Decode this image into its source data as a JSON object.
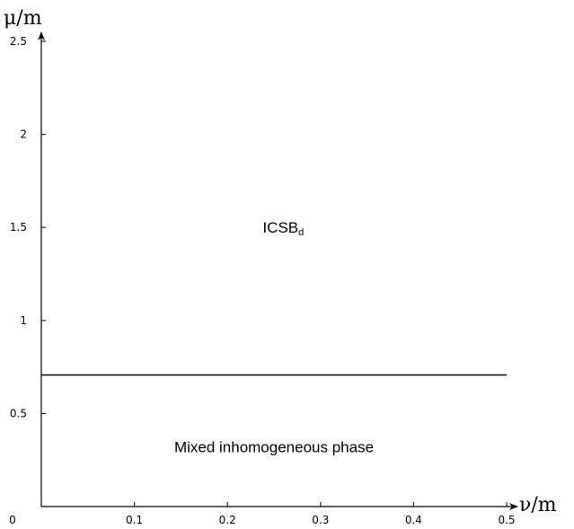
{
  "chart_data": {
    "type": "line",
    "title": "",
    "xlabel": "ν/m",
    "ylabel": "μ/m",
    "xlim": [
      0,
      0.5
    ],
    "ylim": [
      0,
      2.5
    ],
    "x_ticks": [
      {
        "value": 0,
        "label": "0"
      },
      {
        "value": 0.1,
        "label": "0.1"
      },
      {
        "value": 0.2,
        "label": "0.2"
      },
      {
        "value": 0.3,
        "label": "0.3"
      },
      {
        "value": 0.4,
        "label": "0.4"
      },
      {
        "value": 0.5,
        "label": "0.5"
      }
    ],
    "y_ticks": [
      {
        "value": 0.5,
        "label": "0.5"
      },
      {
        "value": 1,
        "label": "1"
      },
      {
        "value": 1.5,
        "label": "1.5"
      },
      {
        "value": 2,
        "label": "2"
      },
      {
        "value": 2.5,
        "label": "2.5"
      }
    ],
    "grid": false,
    "series": [
      {
        "x": [
          0,
          0.5
        ],
        "y": [
          0.707,
          0.707
        ],
        "color": "#000000"
      }
    ],
    "annotations": [
      {
        "text": "ICSB",
        "subscript": "d",
        "x": 0.26,
        "y": 1.5
      },
      {
        "text": "Mixed inhomogeneous phase",
        "x": 0.25,
        "y": 0.32
      }
    ]
  }
}
